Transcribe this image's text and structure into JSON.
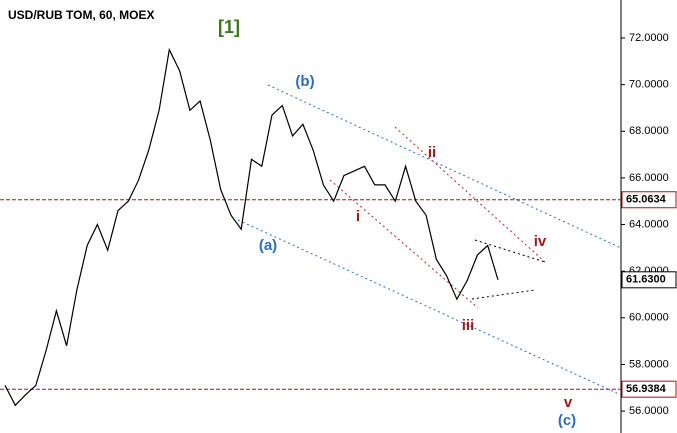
{
  "chart_data": {
    "type": "line",
    "title": "USD/RUB TOM, 60, MOEX",
    "categories": [
      null,
      null,
      null,
      null,
      null,
      null,
      null,
      null,
      null,
      null,
      null,
      null,
      null,
      null,
      null,
      null,
      null,
      null,
      null,
      null,
      null,
      null,
      null,
      null,
      null,
      null,
      null,
      null,
      null,
      null,
      null,
      null,
      null,
      null,
      null,
      null,
      null,
      null,
      null,
      null,
      null,
      null,
      null,
      null,
      null,
      null,
      null,
      null,
      null
    ],
    "series": [
      {
        "name": "USD/RUB",
        "color": "#000000",
        "values": [
          57.1,
          56.25,
          56.7,
          57.1,
          58.6,
          60.3,
          58.8,
          61.2,
          63.1,
          64.0,
          62.9,
          64.6,
          65.0,
          65.9,
          67.2,
          68.9,
          71.5,
          70.6,
          68.9,
          69.3,
          67.6,
          65.5,
          64.4,
          63.8,
          66.8,
          66.5,
          68.7,
          69.1,
          67.8,
          68.3,
          67.2,
          65.7,
          65.0,
          66.1,
          66.3,
          66.5,
          65.7,
          65.7,
          65.0,
          66.5,
          65.0,
          64.4,
          62.5,
          61.8,
          60.8,
          61.6,
          62.7,
          63.1,
          61.63
        ]
      }
    ],
    "ylim": [
      55.06,
      73.63
    ],
    "yticks": [
      {
        "value": 56,
        "label": "56.0000"
      },
      {
        "value": 58,
        "label": "58.0000"
      },
      {
        "value": 60,
        "label": "60.0000"
      },
      {
        "value": 62,
        "label": "62.0000"
      },
      {
        "value": 64,
        "label": "64.0000"
      },
      {
        "value": 66,
        "label": "66.0000"
      },
      {
        "value": 68,
        "label": "68.0000"
      },
      {
        "value": 70,
        "label": "70.0000"
      },
      {
        "value": 72,
        "label": "72.0000"
      }
    ],
    "hlines": [
      {
        "value": 65.0634,
        "label": "65.0634"
      },
      {
        "value": 56.9384,
        "label": "56.9384"
      }
    ],
    "last_label": "61.6300",
    "annotations": [
      {
        "text": "[1]",
        "color": "#3a7a1a"
      },
      {
        "text": "(b)",
        "color": "#2b6cc4"
      },
      {
        "text": "(a)",
        "color": "#2b6cc4"
      },
      {
        "text": "ii",
        "color": "#a01818"
      },
      {
        "text": "i",
        "color": "#a01818"
      },
      {
        "text": "iii",
        "color": "#a01818"
      },
      {
        "text": "iv",
        "color": "#a01818"
      },
      {
        "text": "v",
        "color": "#a01818"
      },
      {
        "text": "(c)",
        "color": "#2b6cc4"
      }
    ]
  }
}
